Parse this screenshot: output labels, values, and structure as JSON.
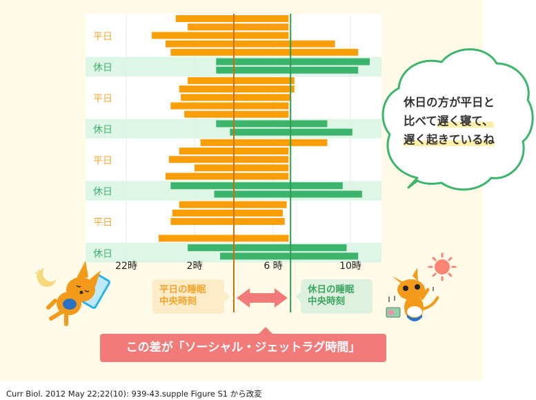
{
  "chart_data": {
    "type": "bar",
    "subtype": "horizontal-range",
    "x_unit": "hours after midnight (negative = previous evening)",
    "xlim": [
      -3,
      11.5
    ],
    "x_ticks": [
      {
        "value": -2,
        "label": "22時"
      },
      {
        "value": 2,
        "label": "2時"
      },
      {
        "value": 6,
        "label": "6 時"
      },
      {
        "value": 10,
        "label": "10時"
      }
    ],
    "grid": true,
    "groups": [
      {
        "label": "平日",
        "type": "weekday",
        "bars": [
          [
            0.9,
            6.8
          ],
          [
            1.6,
            6.8
          ],
          [
            -0.5,
            6.8
          ],
          [
            0.3,
            9.2
          ],
          [
            0.6,
            10.4
          ]
        ]
      },
      {
        "label": "休日",
        "type": "weekend",
        "bars": [
          [
            3.1,
            11.0
          ],
          [
            3.1,
            10.4
          ]
        ]
      },
      {
        "label": "平日",
        "type": "weekday",
        "bars": [
          [
            1.6,
            7.1
          ],
          [
            1.1,
            7.1
          ],
          [
            1.2,
            6.9
          ],
          [
            0.6,
            6.8
          ],
          [
            1.4,
            6.8
          ]
        ]
      },
      {
        "label": "休日",
        "type": "weekend",
        "bars": [
          [
            3.1,
            8.8
          ],
          [
            3.8,
            10.1
          ]
        ]
      },
      {
        "label": "平日",
        "type": "weekday",
        "bars": [
          [
            2.3,
            8.8
          ],
          [
            1.1,
            6.8
          ],
          [
            0.5,
            6.8
          ],
          [
            2.0,
            6.8
          ],
          [
            0.3,
            6.8
          ]
        ]
      },
      {
        "label": "休日",
        "type": "weekend",
        "bars": [
          [
            0.6,
            9.6
          ],
          [
            3.0,
            10.6
          ]
        ]
      },
      {
        "label": "平日",
        "type": "weekday",
        "bars": [
          [
            1.1,
            6.7
          ],
          [
            0.7,
            6.5
          ],
          [
            0.6,
            6.6
          ],
          null,
          [
            -0.1,
            6.8
          ]
        ]
      },
      {
        "label": "休日",
        "type": "weekend",
        "bars": [
          [
            1.6,
            9.8
          ],
          [
            3.3,
            10.4
          ]
        ]
      }
    ],
    "medians": [
      {
        "name": "平日の睡眠中央時刻",
        "value": 4.0,
        "color": "#c8710e"
      },
      {
        "name": "休日の睡眠中央時刻",
        "value": 6.9,
        "color": "#2c9e54"
      }
    ],
    "colors": {
      "weekday": "#f99f05",
      "weekend": "#3cb46b",
      "weekday_label": "#f5a42a",
      "weekend_label": "#3cb46b",
      "weekend_band": "#ddf6e6",
      "arrow": "#f27a78"
    }
  },
  "labels": {
    "weekday_median_line1": "平日の睡眠",
    "weekday_median_line2": "中央時刻",
    "weekend_median_line1": "休日の睡眠",
    "weekend_median_line2": "中央時刻",
    "banner": "この差が「ソーシャル・ジェットラグ時間」"
  },
  "bubble": {
    "line1": "休日の方が平日と",
    "line2_a": "比べて",
    "line2_b": "遅く寝て、",
    "line3": "遅く起きているね"
  },
  "footer": {
    "citation": "Curr Biol. 2012 May 22;22(10): 939-43.supple Figure S1 から改変"
  },
  "icons": [
    "moon-icon",
    "sleeping-kangaroo-icon",
    "sun-icon",
    "kangaroo-radio-icon",
    "double-arrow-icon"
  ]
}
